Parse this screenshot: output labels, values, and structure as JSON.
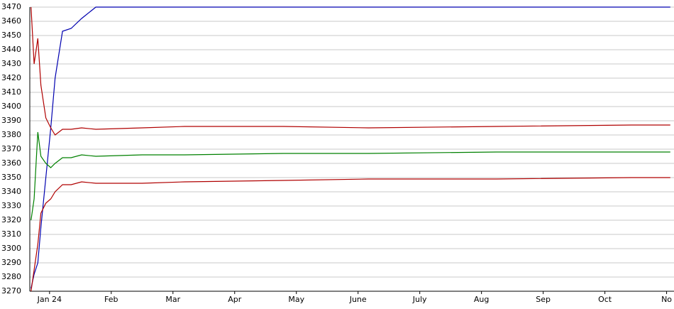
{
  "chart_data": {
    "type": "line",
    "x": [
      -0.3,
      -0.25,
      -0.19,
      -0.14,
      -0.06,
      0.02,
      0.09,
      0.21,
      0.35,
      0.52,
      0.75,
      1.5,
      2.19,
      3.79,
      5.17,
      7.24,
      9.43,
      10.06
    ],
    "series": [
      {
        "color": "#0000b0",
        "values": [
          3272,
          3282,
          3290,
          3315,
          3350,
          3385,
          3420,
          3453,
          3455,
          3462,
          3470,
          3470,
          3470,
          3470,
          3470,
          3470,
          3470,
          3470
        ]
      },
      {
        "color": "#b00000",
        "values": [
          3470,
          3430,
          3448,
          3415,
          3392,
          3385,
          3380,
          3384,
          3384,
          3385,
          3384,
          3385,
          3386,
          3386,
          3385,
          3386,
          3387,
          3387
        ]
      },
      {
        "color": "#008000",
        "values": [
          3320,
          3335,
          3382,
          3365,
          3360,
          3357,
          3360,
          3364,
          3364,
          3366,
          3365,
          3366,
          3366,
          3367,
          3367,
          3368,
          3368,
          3368
        ]
      },
      {
        "color": "#b00000",
        "values": [
          3270,
          3285,
          3303,
          3325,
          3332,
          3335,
          3340,
          3345,
          3345,
          3347,
          3346,
          3346,
          3347,
          3348,
          3349,
          3349,
          3350,
          3350
        ]
      }
    ],
    "xlim": [
      -0.32,
      10.12
    ],
    "xticks": [
      {
        "value": 0,
        "label": "Jan 24"
      },
      {
        "value": 1,
        "label": "Feb"
      },
      {
        "value": 2,
        "label": "Mar"
      },
      {
        "value": 3,
        "label": "Apr"
      },
      {
        "value": 4,
        "label": "May"
      },
      {
        "value": 5,
        "label": "June"
      },
      {
        "value": 6,
        "label": "July"
      },
      {
        "value": 7,
        "label": "Aug"
      },
      {
        "value": 8,
        "label": "Sep"
      },
      {
        "value": 9,
        "label": "Oct"
      },
      {
        "value": 10,
        "label": "No"
      }
    ],
    "ylim": [
      3270,
      3470
    ],
    "yticks": [
      3270,
      3280,
      3290,
      3300,
      3310,
      3320,
      3330,
      3340,
      3350,
      3360,
      3370,
      3380,
      3390,
      3400,
      3410,
      3420,
      3430,
      3440,
      3450,
      3460,
      3470
    ],
    "grid": true
  }
}
